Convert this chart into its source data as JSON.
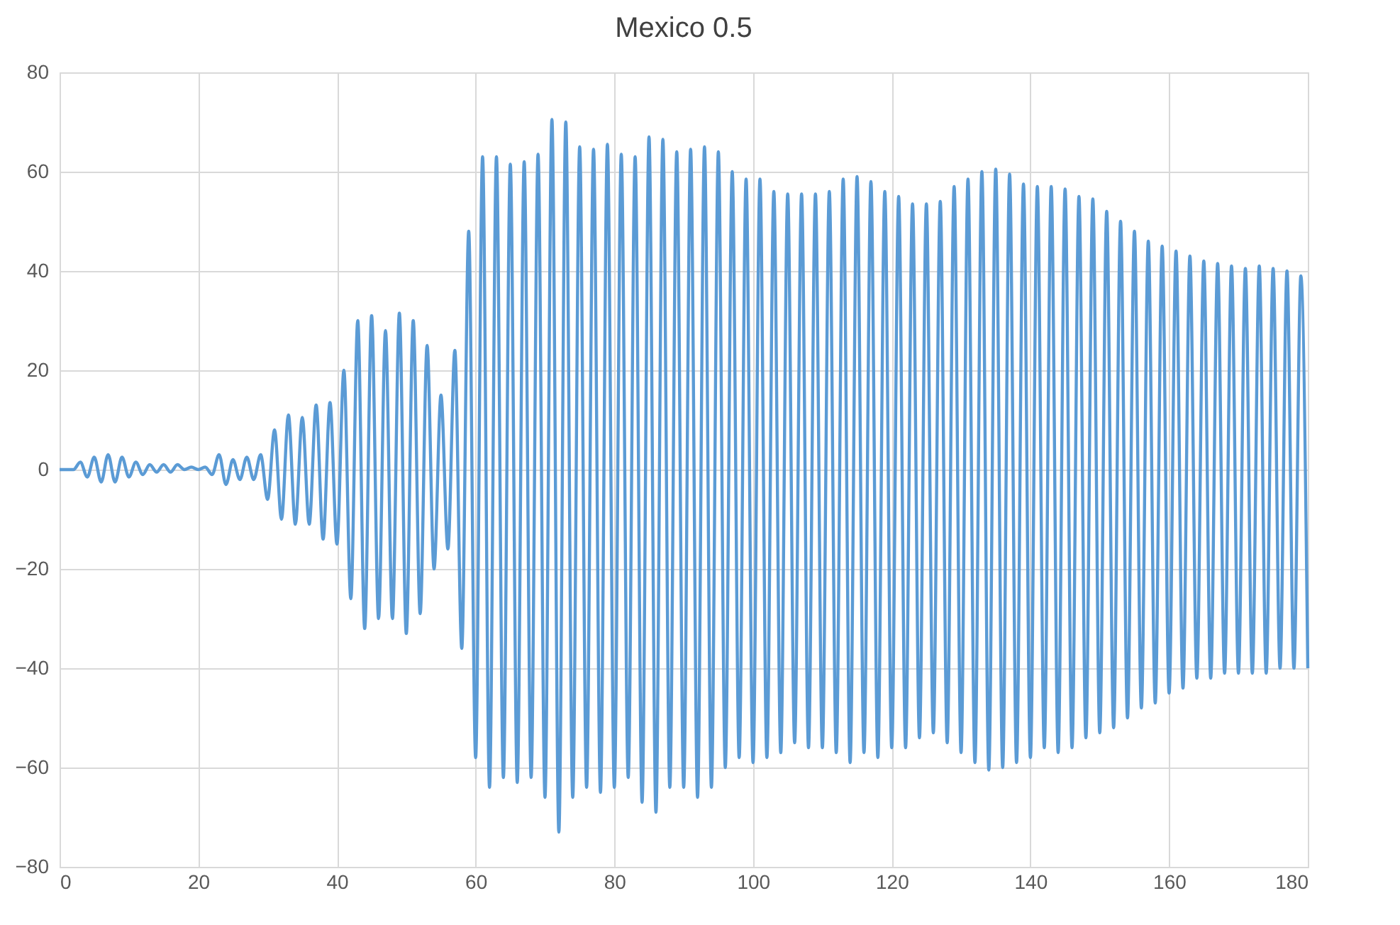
{
  "chart_data": {
    "type": "line",
    "title": "Mexico 0.5",
    "x": [
      0,
      1,
      2,
      3,
      4,
      5,
      6,
      7,
      8,
      9,
      10,
      11,
      12,
      13,
      14,
      15,
      16,
      17,
      18,
      19,
      20,
      21,
      22,
      23,
      24,
      25,
      26,
      27,
      28,
      29,
      30,
      31,
      32,
      33,
      34,
      35,
      36,
      37,
      38,
      39,
      40,
      41,
      42,
      43,
      44,
      45,
      46,
      47,
      48,
      49,
      50,
      51,
      52,
      53,
      54,
      55,
      56,
      57,
      58,
      59,
      60,
      61,
      62,
      63,
      64,
      65,
      66,
      67,
      68,
      69,
      70,
      71,
      72,
      73,
      74,
      75,
      76,
      77,
      78,
      79,
      80,
      81,
      82,
      83,
      84,
      85,
      86,
      87,
      88,
      89,
      90,
      91,
      92,
      93,
      94,
      95,
      96,
      97,
      98,
      99,
      100,
      101,
      102,
      103,
      104,
      105,
      106,
      107,
      108,
      109,
      110,
      111,
      112,
      113,
      114,
      115,
      116,
      117,
      118,
      119,
      120,
      121,
      122,
      123,
      124,
      125,
      126,
      127,
      128,
      129,
      130,
      131,
      132,
      133,
      134,
      135,
      136,
      137,
      138,
      139,
      140,
      141,
      142,
      143,
      144,
      145,
      146,
      147,
      148,
      149,
      150,
      151,
      152,
      153,
      154,
      155,
      156,
      157,
      158,
      159,
      160,
      161,
      162,
      163,
      164,
      165,
      166,
      167,
      168,
      169,
      170,
      171,
      172,
      173,
      174,
      175,
      176,
      177,
      178,
      179,
      180
    ],
    "series": [
      {
        "color": "#5b9bd5",
        "values": [
          0,
          0,
          0,
          1.5,
          -1.5,
          2.5,
          -2.5,
          3,
          -2.5,
          2.5,
          -1.5,
          1.5,
          -1,
          1,
          -0.5,
          1,
          -0.5,
          1,
          0,
          0.5,
          0,
          0.5,
          -1,
          3,
          -3,
          2,
          -2,
          2.5,
          -2,
          3,
          -6,
          8,
          -10,
          11,
          -11,
          10.5,
          -11,
          13,
          -14,
          13.5,
          -15,
          20,
          -26,
          30,
          -32,
          31,
          -30,
          28,
          -30,
          31.5,
          -33,
          30,
          -29,
          25,
          -20,
          15,
          -16,
          24,
          -36,
          48,
          -58,
          63,
          -64,
          63,
          -62,
          61.5,
          -63,
          62,
          -62,
          63.5,
          -66,
          70.5,
          -73,
          70,
          -66,
          65,
          -64,
          64.5,
          -65,
          65.5,
          -64,
          63.5,
          -62,
          63,
          -67,
          67,
          -69,
          66.5,
          -64,
          64,
          -64,
          64.5,
          -66,
          65,
          -64,
          64,
          -60,
          60,
          -58,
          58.5,
          -59,
          58.5,
          -58,
          56,
          -57,
          55.5,
          -55,
          55.5,
          -56,
          55.5,
          -56,
          56,
          -57,
          58.5,
          -59,
          59,
          -57,
          58,
          -58,
          56,
          -56,
          55,
          -56,
          53.5,
          -54,
          53.5,
          -53,
          54,
          -55,
          57,
          -57,
          58.5,
          -59,
          60,
          -60.5,
          60.5,
          -60,
          59.5,
          -59,
          57.5,
          -58,
          57,
          -56,
          57,
          -57,
          56.5,
          -56,
          55,
          -54,
          54.5,
          -53,
          52,
          -52,
          50,
          -50,
          48,
          -48,
          46,
          -47,
          45,
          -45,
          44,
          -44,
          43,
          -42,
          42,
          -42,
          41.5,
          -41,
          41,
          -41,
          40.5,
          -41,
          41,
          -41,
          40.5,
          -40,
          40,
          -40,
          39,
          -40
        ]
      }
    ],
    "xlim": [
      0,
      180
    ],
    "xticks": [
      0,
      20,
      40,
      60,
      80,
      100,
      120,
      140,
      160,
      180
    ],
    "ylim": [
      -80,
      80
    ],
    "yticks": [
      -80,
      -60,
      -40,
      -20,
      0,
      20,
      40,
      60,
      80
    ],
    "grid": true,
    "line_style": "solid",
    "marker": "none"
  }
}
